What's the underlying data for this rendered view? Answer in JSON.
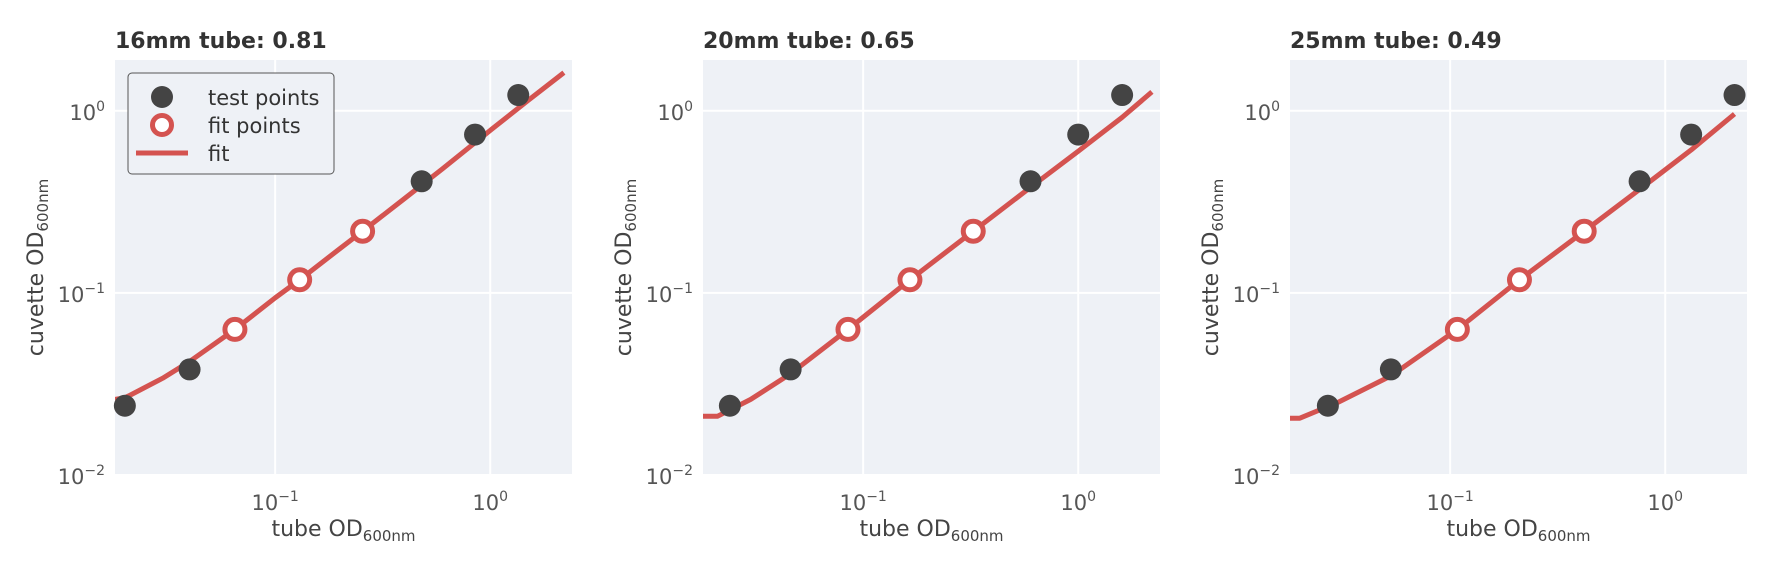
{
  "colors": {
    "panel_bg": "#eef1f6",
    "grid": "#ffffff",
    "fit_line": "#d45350",
    "test_point": "#444444",
    "fit_point_edge": "#d45350",
    "fit_point_fill": "#ffffff"
  },
  "chart_data": [
    {
      "type": "scatter",
      "title": "16mm tube: 0.81",
      "xlabel": {
        "main": "tube OD",
        "sub": "600nm"
      },
      "ylabel": {
        "main": "cuvette OD",
        "sub": "600nm"
      },
      "x_scale": "log",
      "y_scale": "log",
      "xlim": [
        0.018,
        2.4
      ],
      "ylim": [
        0.01,
        1.9
      ],
      "x_ticks": [
        {
          "value": 0.1,
          "base": "10",
          "exp": "−1"
        },
        {
          "value": 1,
          "base": "10",
          "exp": "0"
        }
      ],
      "y_ticks": [
        {
          "value": 0.01,
          "base": "10",
          "exp": "−2"
        },
        {
          "value": 0.1,
          "base": "10",
          "exp": "−1"
        },
        {
          "value": 1,
          "base": "10",
          "exp": "0"
        }
      ],
      "grid": true,
      "legend": {
        "placement": "top-left",
        "entries": [
          "test points",
          "fit points",
          "fit"
        ]
      },
      "series": [
        {
          "name": "test points",
          "kind": "filled",
          "x": [
            0.02,
            0.04,
            0.48,
            0.85,
            1.35
          ],
          "y": [
            0.024,
            0.038,
            0.41,
            0.74,
            1.22
          ]
        },
        {
          "name": "fit points",
          "kind": "hollow",
          "x": [
            0.065,
            0.13,
            0.255
          ],
          "y": [
            0.063,
            0.118,
            0.218
          ]
        },
        {
          "name": "fit",
          "kind": "line",
          "x": [
            0.018,
            0.02,
            0.03,
            0.04,
            0.065,
            0.1,
            0.13,
            0.2,
            0.255,
            0.4,
            0.6,
            1.0,
            1.5,
            2.2
          ],
          "y": [
            0.026,
            0.0265,
            0.034,
            0.042,
            0.063,
            0.094,
            0.118,
            0.175,
            0.218,
            0.33,
            0.48,
            0.78,
            1.14,
            1.62
          ]
        }
      ]
    },
    {
      "type": "scatter",
      "title": "20mm tube: 0.65",
      "xlabel": {
        "main": "tube OD",
        "sub": "600nm"
      },
      "ylabel": {
        "main": "cuvette OD",
        "sub": "600nm"
      },
      "x_scale": "log",
      "y_scale": "log",
      "xlim": [
        0.018,
        2.4
      ],
      "ylim": [
        0.01,
        1.9
      ],
      "x_ticks": [
        {
          "value": 0.1,
          "base": "10",
          "exp": "−1"
        },
        {
          "value": 1,
          "base": "10",
          "exp": "0"
        }
      ],
      "y_ticks": [
        {
          "value": 0.01,
          "base": "10",
          "exp": "−2"
        },
        {
          "value": 0.1,
          "base": "10",
          "exp": "−1"
        },
        {
          "value": 1,
          "base": "10",
          "exp": "0"
        }
      ],
      "grid": true,
      "series": [
        {
          "name": "test points",
          "kind": "filled",
          "x": [
            0.024,
            0.046,
            0.6,
            1.0,
            1.6
          ],
          "y": [
            0.024,
            0.038,
            0.41,
            0.74,
            1.22
          ]
        },
        {
          "name": "fit points",
          "kind": "hollow",
          "x": [
            0.085,
            0.165,
            0.325
          ],
          "y": [
            0.063,
            0.118,
            0.218
          ]
        },
        {
          "name": "fit",
          "kind": "line",
          "x": [
            0.018,
            0.021,
            0.03,
            0.046,
            0.085,
            0.165,
            0.325,
            0.6,
            1.0,
            1.6,
            2.2
          ],
          "y": [
            0.021,
            0.021,
            0.026,
            0.036,
            0.063,
            0.118,
            0.218,
            0.38,
            0.6,
            0.92,
            1.27
          ]
        }
      ]
    },
    {
      "type": "scatter",
      "title": "25mm tube: 0.49",
      "xlabel": {
        "main": "tube OD",
        "sub": "600nm"
      },
      "ylabel": {
        "main": "cuvette OD",
        "sub": "600nm"
      },
      "x_scale": "log",
      "y_scale": "log",
      "xlim": [
        0.018,
        2.4
      ],
      "ylim": [
        0.01,
        1.9
      ],
      "x_ticks": [
        {
          "value": 0.1,
          "base": "10",
          "exp": "−1"
        },
        {
          "value": 1,
          "base": "10",
          "exp": "0"
        }
      ],
      "y_ticks": [
        {
          "value": 0.01,
          "base": "10",
          "exp": "−2"
        },
        {
          "value": 0.1,
          "base": "10",
          "exp": "−1"
        },
        {
          "value": 1,
          "base": "10",
          "exp": "0"
        }
      ],
      "grid": true,
      "series": [
        {
          "name": "test points",
          "kind": "filled",
          "x": [
            0.027,
            0.053,
            0.76,
            1.32,
            2.1
          ],
          "y": [
            0.024,
            0.038,
            0.41,
            0.74,
            1.22
          ]
        },
        {
          "name": "fit points",
          "kind": "hollow",
          "x": [
            0.108,
            0.21,
            0.42
          ],
          "y": [
            0.063,
            0.118,
            0.218
          ]
        },
        {
          "name": "fit",
          "kind": "line",
          "x": [
            0.018,
            0.02,
            0.03,
            0.053,
            0.108,
            0.21,
            0.42,
            0.76,
            1.32,
            2.1
          ],
          "y": [
            0.0205,
            0.0205,
            0.025,
            0.035,
            0.063,
            0.118,
            0.218,
            0.37,
            0.61,
            0.96
          ]
        }
      ]
    }
  ]
}
